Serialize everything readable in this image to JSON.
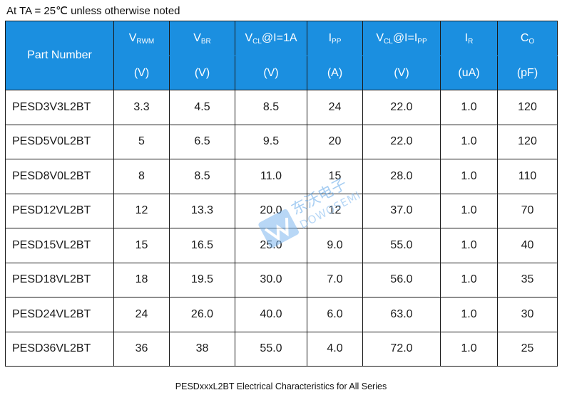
{
  "condition": "At TA = 25℃  unless otherwise noted",
  "header": {
    "part_number": "Part Number",
    "params": [
      {
        "main": "V",
        "sub": "RWM",
        "suffix": "",
        "unit": "(V)"
      },
      {
        "main": "V",
        "sub": "BR",
        "suffix": "",
        "unit": "(V)"
      },
      {
        "main": "V",
        "sub": "CL",
        "suffix": "@I=1A",
        "unit": "(V)"
      },
      {
        "main": "I",
        "sub": "PP",
        "suffix": "",
        "unit": "(A)"
      },
      {
        "main": "V",
        "sub": "CL",
        "suffix": "@I=I",
        "sub2": "PP",
        "unit": "(V)"
      },
      {
        "main": "I",
        "sub": "R",
        "suffix": "",
        "unit": "(uA)"
      },
      {
        "main": "C",
        "sub": "O",
        "suffix": "",
        "unit": "(pF)"
      }
    ]
  },
  "rows": [
    {
      "part": "PESD3V3L2BT",
      "vrwm": "3.3",
      "vbr": "4.5",
      "vcl1a": "8.5",
      "ipp": "24",
      "vclipp": "22.0",
      "ir": "1.0",
      "co": "120"
    },
    {
      "part": "PESD5V0L2BT",
      "vrwm": "5",
      "vbr": "6.5",
      "vcl1a": "9.5",
      "ipp": "20",
      "vclipp": "22.0",
      "ir": "1.0",
      "co": "120"
    },
    {
      "part": "PESD8V0L2BT",
      "vrwm": "8",
      "vbr": "8.5",
      "vcl1a": "11.0",
      "ipp": "15",
      "vclipp": "28.0",
      "ir": "1.0",
      "co": "110"
    },
    {
      "part": "PESD12VL2BT",
      "vrwm": "12",
      "vbr": "13.3",
      "vcl1a": "20.0",
      "ipp": "12",
      "vclipp": "37.0",
      "ir": "1.0",
      "co": "70"
    },
    {
      "part": "PESD15VL2BT",
      "vrwm": "15",
      "vbr": "16.5",
      "vcl1a": "25.0",
      "ipp": "9.0",
      "vclipp": "55.0",
      "ir": "1.0",
      "co": "40"
    },
    {
      "part": "PESD18VL2BT",
      "vrwm": "18",
      "vbr": "19.5",
      "vcl1a": "30.0",
      "ipp": "7.0",
      "vclipp": "56.0",
      "ir": "1.0",
      "co": "35"
    },
    {
      "part": "PESD24VL2BT",
      "vrwm": "24",
      "vbr": "26.0",
      "vcl1a": "40.0",
      "ipp": "6.0",
      "vclipp": "63.0",
      "ir": "1.0",
      "co": "30"
    },
    {
      "part": "PESD36VL2BT",
      "vrwm": "36",
      "vbr": "38",
      "vcl1a": "55.0",
      "ipp": "4.0",
      "vclipp": "72.0",
      "ir": "1.0",
      "co": "25"
    }
  ],
  "caption": "PESDxxxL2BT Electrical Characteristics for All Series",
  "watermark": {
    "text_cn": "东沃电子",
    "text_en": "DOWOSEMI"
  },
  "colors": {
    "header_bg": "#1b8fe0",
    "header_text": "#ffffff",
    "border": "#1a1a1a"
  }
}
